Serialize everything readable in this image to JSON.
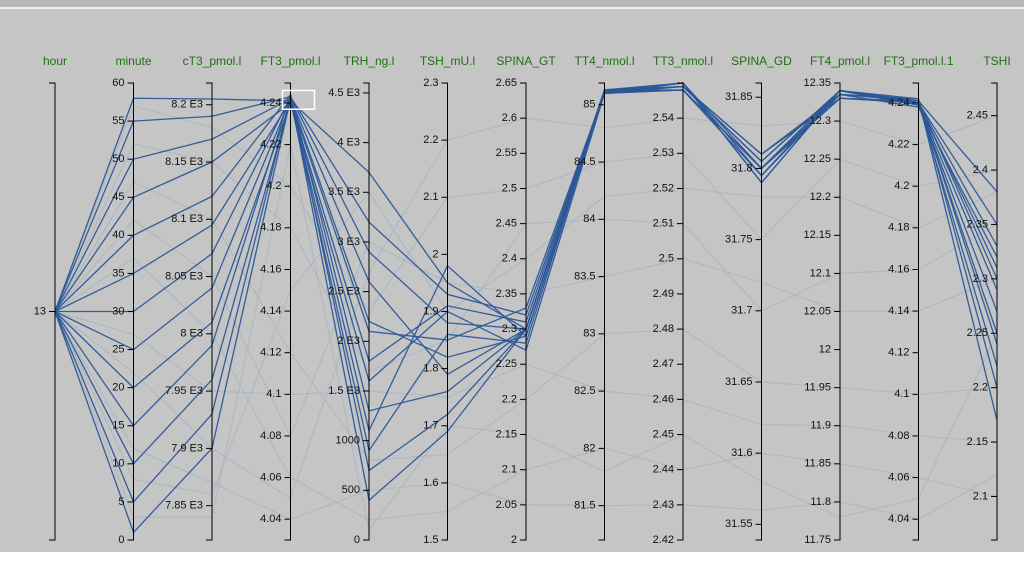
{
  "chart_data": {
    "type": "parallel",
    "axes": [
      {
        "name": "hour",
        "ylim": [
          12,
          14
        ],
        "yticks": [
          13
        ]
      },
      {
        "name": "minute",
        "ylim": [
          0,
          60
        ],
        "yticks": [
          0,
          5,
          10,
          15,
          20,
          25,
          30,
          35,
          40,
          45,
          50,
          55,
          60
        ]
      },
      {
        "name": "cT3_pmol.l",
        "ylim": [
          7820,
          8219
        ],
        "yticks": [
          {
            "value": 7850,
            "label": "7.85 E3"
          },
          {
            "value": 7900,
            "label": "7.9 E3"
          },
          {
            "value": 7950,
            "label": "7.95 E3"
          },
          {
            "value": 8000,
            "label": "8 E3"
          },
          {
            "value": 8050,
            "label": "8.05 E3"
          },
          {
            "value": 8100,
            "label": "8.1 E3"
          },
          {
            "value": 8150,
            "label": "8.15 E3"
          },
          {
            "value": 8200,
            "label": "8.2 E3"
          }
        ]
      },
      {
        "name": "FT3_pmol.l",
        "ylim": [
          4.03,
          4.2496
        ],
        "yticks": [
          4.04,
          4.06,
          4.08,
          4.1,
          4.12,
          4.14,
          4.16,
          4.18,
          4.2,
          4.22,
          4.24
        ]
      },
      {
        "name": "TRH_ng.l",
        "ylim": [
          0,
          4600
        ],
        "yticks": [
          0,
          500,
          1000,
          {
            "value": 1500,
            "label": "1.5 E3"
          },
          {
            "value": 2000,
            "label": "2 E3"
          },
          {
            "value": 2500,
            "label": "2.5 E3"
          },
          {
            "value": 3000,
            "label": "3 E3"
          },
          {
            "value": 3500,
            "label": "3.5 E3"
          },
          {
            "value": 4000,
            "label": "4 E3"
          },
          {
            "value": 4500,
            "label": "4.5 E3"
          }
        ]
      },
      {
        "name": "TSH_mU.l",
        "ylim": [
          1.5,
          2.3
        ],
        "yticks": [
          1.5,
          1.6,
          1.7,
          1.8,
          1.9,
          2,
          2.1,
          2.2,
          2.3
        ]
      },
      {
        "name": "SPINA_GT",
        "ylim": [
          2,
          2.65
        ],
        "yticks": [
          2,
          2.05,
          2.1,
          2.15,
          2.2,
          2.25,
          2.3,
          2.35,
          2.4,
          2.45,
          2.5,
          2.55,
          2.6,
          2.65
        ]
      },
      {
        "name": "TT4_nmol.l",
        "ylim": [
          81.2,
          85.19
        ],
        "yticks": [
          81.5,
          82,
          82.5,
          83,
          83.5,
          84,
          84.5,
          85
        ]
      },
      {
        "name": "TT3_nmol.l",
        "ylim": [
          2.42,
          2.55
        ],
        "yticks": [
          2.42,
          2.43,
          2.44,
          2.45,
          2.46,
          2.47,
          2.48,
          2.49,
          2.5,
          2.51,
          2.52,
          2.53,
          2.54
        ]
      },
      {
        "name": "SPINA_GD",
        "ylim": [
          31.539,
          31.86
        ],
        "yticks": [
          31.55,
          31.6,
          31.65,
          31.7,
          31.75,
          31.8,
          31.85
        ]
      },
      {
        "name": "FT4_pmol.l",
        "ylim": [
          11.75,
          12.35
        ],
        "yticks": [
          11.75,
          11.8,
          11.85,
          11.9,
          11.95,
          12,
          12.05,
          12.1,
          12.15,
          12.2,
          12.25,
          12.3,
          12.35
        ]
      },
      {
        "name": "FT3_pmol.l.1",
        "ylim": [
          4.03,
          4.2496
        ],
        "yticks": [
          4.04,
          4.06,
          4.08,
          4.1,
          4.12,
          4.14,
          4.16,
          4.18,
          4.2,
          4.22,
          4.24
        ]
      },
      {
        "name": "TSHI",
        "ylim": [
          2.06,
          2.48
        ],
        "yticks": [
          2.1,
          2.15,
          2.2,
          2.25,
          2.3,
          2.35,
          2.4,
          2.45
        ]
      }
    ],
    "brush": {
      "axis": 3,
      "range": [
        4.237,
        4.246
      ]
    },
    "highlight_color": "#2b5797",
    "background_color": "#a9b4c2",
    "records": [
      [
        13,
        57,
        8180,
        4.2,
        2300,
        2.1,
        2.5,
        84.5,
        2.53,
        31.75,
        12.25,
        4.2,
        2.4
      ],
      [
        13,
        52,
        8150,
        4.18,
        1700,
        1.85,
        2.45,
        84,
        2.51,
        31.7,
        12.1,
        4.16,
        2.35
      ],
      [
        13,
        47,
        8100,
        4.12,
        800,
        1.65,
        2.2,
        83,
        2.48,
        31.65,
        11.95,
        4.1,
        2.2
      ],
      [
        13,
        42,
        8050,
        4.08,
        3000,
        1.95,
        2.35,
        83.5,
        2.5,
        31.72,
        12.05,
        4.14,
        2.3
      ],
      [
        13,
        37,
        8000,
        4.06,
        200,
        1.55,
        2.1,
        82,
        2.44,
        31.6,
        11.85,
        4.06,
        2.1
      ],
      [
        13,
        27,
        7950,
        4.1,
        1500,
        1.75,
        2.25,
        82.5,
        2.46,
        31.62,
        11.9,
        4.08,
        2.15
      ],
      [
        13,
        22,
        7900,
        4.05,
        2700,
        2.2,
        2.6,
        84.8,
        2.54,
        31.83,
        12.3,
        4.22,
        2.45
      ],
      [
        13,
        12,
        7870,
        4.04,
        500,
        1.6,
        2.05,
        81.5,
        2.43,
        31.56,
        11.8,
        4.04,
        2.12
      ],
      [
        13,
        8,
        7860,
        4.15,
        3500,
        1.9,
        2.4,
        84.2,
        2.52,
        31.78,
        12.2,
        4.18,
        2.38
      ],
      [
        13,
        3,
        7840,
        4.22,
        100,
        1.7,
        2.15,
        81.8,
        2.45,
        31.58,
        11.78,
        4.05,
        2.25
      ],
      [
        13,
        58,
        8205,
        4.241,
        3700,
        1.95,
        2.3,
        85.1,
        2.548,
        31.8,
        12.34,
        4.24,
        2.35
      ],
      [
        13,
        55,
        8190,
        4.243,
        2900,
        1.88,
        2.3,
        85.12,
        2.549,
        31.81,
        12.335,
        4.241,
        2.3
      ],
      [
        13,
        50,
        8170,
        4.242,
        2200,
        1.82,
        2.29,
        85.11,
        2.55,
        31.79,
        12.34,
        4.239,
        2.27
      ],
      [
        13,
        45,
        8150,
        4.24,
        1800,
        1.91,
        2.31,
        85.13,
        2.548,
        31.8,
        12.33,
        4.24,
        2.25
      ],
      [
        13,
        40,
        8120,
        4.244,
        1300,
        1.76,
        2.3,
        85.1,
        2.549,
        31.805,
        12.34,
        4.242,
        2.2
      ],
      [
        13,
        35,
        8095,
        4.241,
        900,
        1.86,
        2.28,
        85.12,
        2.55,
        31.795,
        12.335,
        4.238,
        2.32
      ],
      [
        13,
        30,
        8070,
        4.243,
        3200,
        1.93,
        2.32,
        85.11,
        2.548,
        31.8,
        12.34,
        4.241,
        2.38
      ],
      [
        13,
        25,
        8040,
        4.242,
        2600,
        1.79,
        2.3,
        85.13,
        2.549,
        31.81,
        12.33,
        4.24,
        2.22
      ],
      [
        13,
        20,
        8010,
        4.24,
        1600,
        1.9,
        2.27,
        85.1,
        2.55,
        31.79,
        12.34,
        4.239,
        2.29
      ],
      [
        13,
        15,
        7990,
        4.244,
        700,
        1.72,
        2.3,
        85.12,
        2.548,
        31.8,
        12.335,
        4.242,
        2.17
      ],
      [
        13,
        10,
        7960,
        4.241,
        2100,
        1.85,
        2.33,
        85.11,
        2.549,
        31.805,
        12.34,
        4.24,
        2.33
      ],
      [
        13,
        5,
        7930,
        4.243,
        400,
        1.69,
        2.3,
        85.13,
        2.55,
        31.8,
        12.33,
        4.241,
        2.24
      ],
      [
        13,
        1,
        7900,
        4.242,
        1100,
        1.98,
        2.29,
        85.1,
        2.548,
        31.795,
        12.34,
        4.24,
        2.31
      ]
    ]
  }
}
